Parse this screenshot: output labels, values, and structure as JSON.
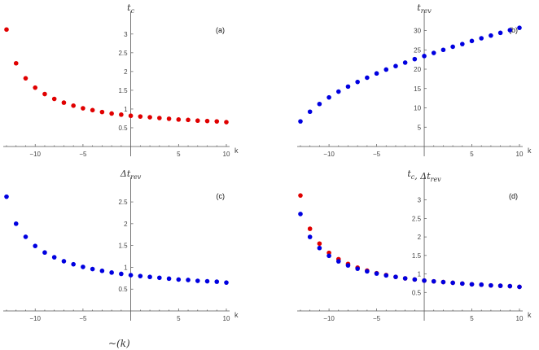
{
  "caption": "~(k)",
  "chart_data": [
    {
      "type": "scatter",
      "panel": "(a)",
      "title": "t_c",
      "xlabel": "k",
      "xlim": [
        -13,
        10
      ],
      "ylim": [
        0,
        3.3
      ],
      "xticks": [
        -10,
        -5,
        5,
        10
      ],
      "yticks": [
        0.5,
        1.0,
        1.5,
        2.0,
        2.5,
        3.0
      ],
      "grid": false,
      "series": [
        {
          "color": "#e00000",
          "x": [
            -13,
            -12,
            -11,
            -10,
            -9,
            -8,
            -7,
            -6,
            -5,
            -4,
            -3,
            -2,
            -1,
            0,
            1,
            2,
            3,
            4,
            5,
            6,
            7,
            8,
            9,
            10
          ],
          "y": [
            3.12,
            2.22,
            1.82,
            1.57,
            1.4,
            1.27,
            1.17,
            1.09,
            1.02,
            0.97,
            0.92,
            0.88,
            0.85,
            0.82,
            0.8,
            0.78,
            0.76,
            0.74,
            0.72,
            0.71,
            0.69,
            0.68,
            0.67,
            0.65
          ]
        }
      ]
    },
    {
      "type": "scatter",
      "panel": "(b)",
      "title": "t_rev",
      "xlabel": "k",
      "xlim": [
        -13,
        10
      ],
      "ylim": [
        0,
        32
      ],
      "xticks": [
        -10,
        -5,
        5,
        10
      ],
      "yticks": [
        5,
        10,
        15,
        20,
        25,
        30
      ],
      "grid": false,
      "series": [
        {
          "color": "#0000e0",
          "x": [
            -13,
            -12,
            -11,
            -10,
            -9,
            -8,
            -7,
            -6,
            -5,
            -4,
            -3,
            -2,
            -1,
            0,
            1,
            2,
            3,
            4,
            5,
            6,
            7,
            8,
            9,
            10
          ],
          "y": [
            6.5,
            9.0,
            11.0,
            12.7,
            14.2,
            15.5,
            16.7,
            17.8,
            18.9,
            19.9,
            20.8,
            21.7,
            22.6,
            23.4,
            24.2,
            25.0,
            25.8,
            26.5,
            27.3,
            28.0,
            28.7,
            29.4,
            30.1,
            30.7
          ]
        }
      ]
    },
    {
      "type": "scatter",
      "panel": "(c)",
      "title": "Δt_rev",
      "xlabel": "k",
      "xlim": [
        -13,
        10
      ],
      "ylim": [
        0,
        2.8
      ],
      "xticks": [
        -10,
        -5,
        5,
        10
      ],
      "yticks": [
        0.5,
        1.0,
        1.5,
        2.0,
        2.5
      ],
      "grid": false,
      "series": [
        {
          "color": "#0000e0",
          "x": [
            -13,
            -12,
            -11,
            -10,
            -9,
            -8,
            -7,
            -6,
            -5,
            -4,
            -3,
            -2,
            -1,
            0,
            1,
            2,
            3,
            4,
            5,
            6,
            7,
            8,
            9,
            10
          ],
          "y": [
            2.62,
            2.0,
            1.7,
            1.49,
            1.34,
            1.23,
            1.14,
            1.07,
            1.01,
            0.96,
            0.92,
            0.88,
            0.85,
            0.82,
            0.8,
            0.78,
            0.76,
            0.74,
            0.72,
            0.71,
            0.69,
            0.68,
            0.67,
            0.65
          ]
        }
      ]
    },
    {
      "type": "scatter",
      "panel": "(d)",
      "title": "t_c, Δt_rev",
      "xlabel": "k",
      "xlim": [
        -13,
        10
      ],
      "ylim": [
        0,
        3.3
      ],
      "xticks": [
        -10,
        -5,
        5,
        10
      ],
      "yticks": [
        0.5,
        1.0,
        1.5,
        2.0,
        2.5,
        3.0
      ],
      "grid": false,
      "series": [
        {
          "color": "#e00000",
          "x": [
            -13,
            -12,
            -11,
            -10,
            -9,
            -8,
            -7,
            -6,
            -5,
            -4,
            -3,
            -2,
            -1,
            0,
            1,
            2,
            3,
            4,
            5,
            6,
            7,
            8,
            9,
            10
          ],
          "y": [
            3.12,
            2.22,
            1.82,
            1.57,
            1.4,
            1.27,
            1.17,
            1.09,
            1.02,
            0.97,
            0.92,
            0.88,
            0.85,
            0.82,
            0.8,
            0.78,
            0.76,
            0.74,
            0.72,
            0.71,
            0.69,
            0.68,
            0.67,
            0.65
          ]
        },
        {
          "color": "#0000e0",
          "x": [
            -13,
            -12,
            -11,
            -10,
            -9,
            -8,
            -7,
            -6,
            -5,
            -4,
            -3,
            -2,
            -1,
            0,
            1,
            2,
            3,
            4,
            5,
            6,
            7,
            8,
            9,
            10
          ],
          "y": [
            2.62,
            2.0,
            1.7,
            1.49,
            1.34,
            1.23,
            1.14,
            1.07,
            1.01,
            0.96,
            0.92,
            0.88,
            0.85,
            0.82,
            0.8,
            0.78,
            0.76,
            0.74,
            0.72,
            0.71,
            0.69,
            0.68,
            0.67,
            0.65
          ]
        }
      ]
    }
  ]
}
